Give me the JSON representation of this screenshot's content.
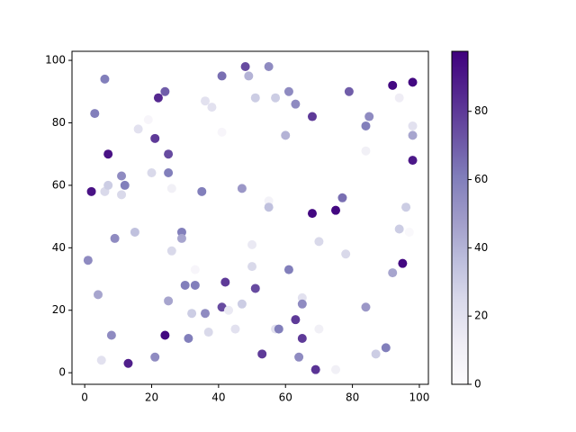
{
  "chart_data": {
    "type": "scatter",
    "x": [
      1,
      3,
      2,
      4,
      5,
      6,
      6,
      7,
      7,
      8,
      9,
      11,
      11,
      12,
      13,
      15,
      16,
      19,
      20,
      21,
      21,
      22,
      24,
      24,
      25,
      25,
      25,
      26,
      26,
      29,
      29,
      30,
      31,
      32,
      33,
      33,
      35,
      36,
      36,
      37,
      38,
      41,
      41,
      41,
      42,
      43,
      45,
      47,
      47,
      48,
      49,
      50,
      50,
      51,
      51,
      53,
      55,
      55,
      55,
      57,
      57,
      58,
      60,
      61,
      61,
      63,
      63,
      64,
      65,
      65,
      65,
      68,
      68,
      69,
      70,
      70,
      75,
      75,
      77,
      78,
      79,
      84,
      84,
      84,
      85,
      87,
      90,
      92,
      92,
      94,
      94,
      95,
      96,
      97,
      98,
      98,
      98,
      98
    ],
    "y": [
      36,
      83,
      58,
      25,
      4,
      94,
      58,
      60,
      70,
      12,
      43,
      63,
      57,
      60,
      3,
      45,
      78,
      81,
      64,
      75,
      5,
      88,
      90,
      12,
      70,
      64,
      23,
      59,
      39,
      45,
      43,
      28,
      11,
      19,
      28,
      33,
      58,
      87,
      19,
      13,
      85,
      95,
      77,
      21,
      29,
      20,
      14,
      22,
      59,
      98,
      95,
      41,
      34,
      27,
      88,
      6,
      98,
      55,
      53,
      88,
      14,
      14,
      76,
      90,
      33,
      86,
      17,
      5,
      24,
      22,
      11,
      82,
      51,
      1,
      42,
      14,
      1,
      52,
      56,
      38,
      90,
      79,
      71,
      21,
      82,
      6,
      8,
      92,
      32,
      88,
      46,
      35,
      53,
      45,
      93,
      79,
      76,
      68
    ],
    "c": [
      55,
      60,
      92,
      45,
      20,
      60,
      25,
      30,
      92,
      55,
      55,
      55,
      25,
      60,
      88,
      35,
      20,
      5,
      25,
      80,
      55,
      85,
      70,
      95,
      75,
      60,
      45,
      10,
      25,
      60,
      45,
      60,
      60,
      30,
      60,
      5,
      60,
      20,
      55,
      25,
      20,
      65,
      5,
      75,
      80,
      15,
      20,
      30,
      50,
      75,
      40,
      15,
      25,
      75,
      30,
      80,
      55,
      8,
      35,
      30,
      20,
      60,
      40,
      55,
      60,
      55,
      80,
      55,
      20,
      55,
      80,
      80,
      95,
      82,
      25,
      10,
      10,
      95,
      65,
      25,
      70,
      60,
      10,
      50,
      55,
      30,
      60,
      95,
      45,
      12,
      30,
      95,
      30,
      3,
      95,
      20,
      45,
      90
    ],
    "colormap": [
      "#fcfbfd",
      "#efedf5",
      "#dadaeb",
      "#bcbddc",
      "#9e9ac8",
      "#807dba",
      "#6a51a3",
      "#54278f",
      "#3f007d"
    ],
    "clim": [
      0,
      97.6
    ],
    "cticks": [
      0,
      20,
      40,
      60,
      80
    ],
    "xlim": [
      -3.8,
      102.7
    ],
    "xticks": [
      0,
      20,
      40,
      60,
      80,
      100
    ],
    "ylim": [
      -3.7,
      102.9
    ],
    "yticks": [
      0,
      20,
      40,
      60,
      80,
      100
    ]
  }
}
